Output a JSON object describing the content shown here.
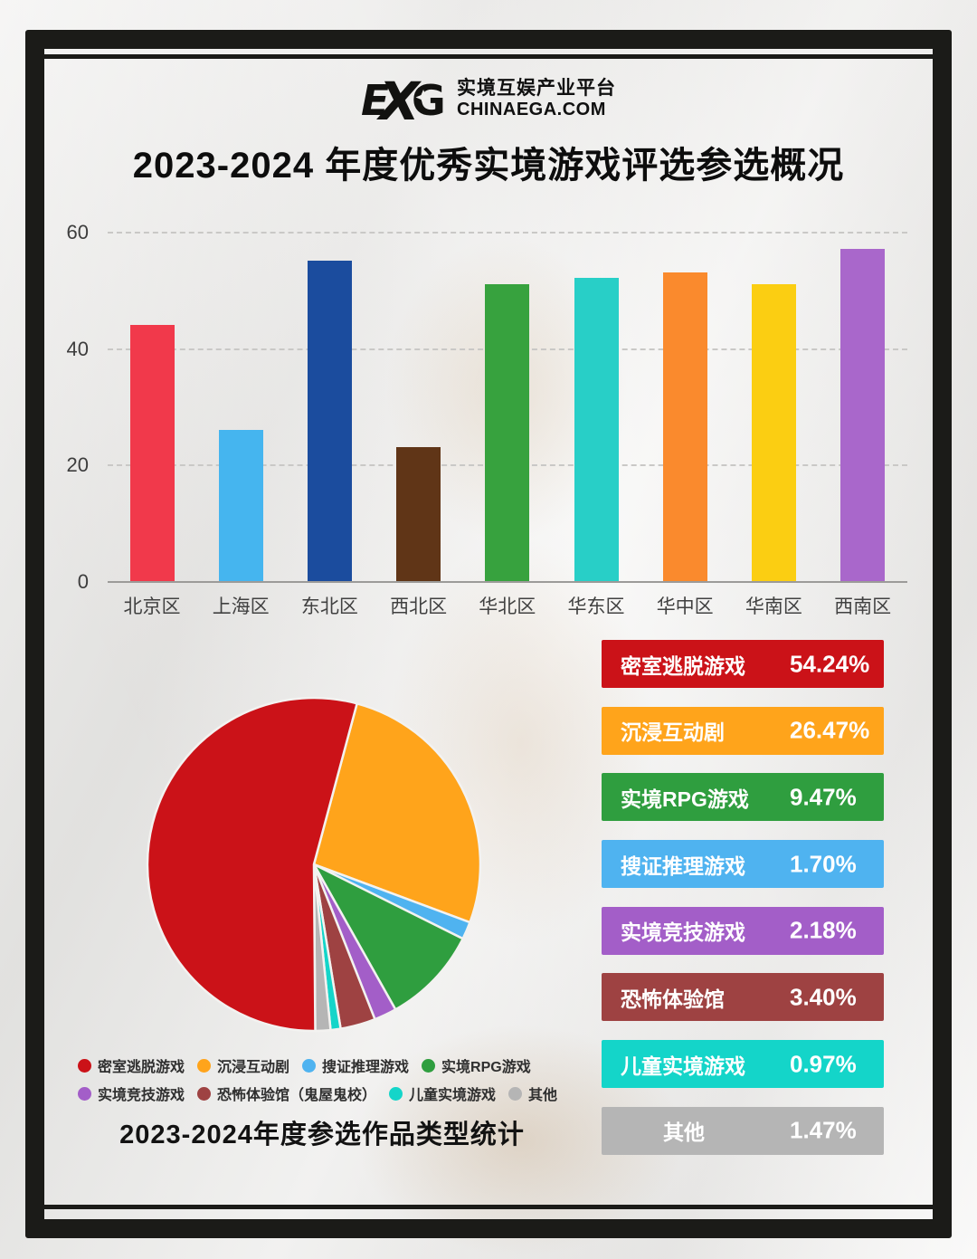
{
  "header": {
    "logo": {
      "mark": "EGA",
      "line1": "实境互娱产业平台",
      "line2": "CHINAEGA.COM"
    },
    "title": "2023-2024 年度优秀实境游戏评选参选概况"
  },
  "chart_data": [
    {
      "type": "bar",
      "title": "",
      "xlabel": "",
      "ylabel": "",
      "categories": [
        "北京区",
        "上海区",
        "东北区",
        "西北区",
        "华北区",
        "华东区",
        "华中区",
        "华南区",
        "西南区"
      ],
      "values": [
        44,
        26,
        55,
        23,
        51,
        52,
        53,
        51,
        57
      ],
      "colors": [
        "#f1394b",
        "#45b5ef",
        "#1b4c9e",
        "#603517",
        "#37a23e",
        "#28cfc7",
        "#fa8a2d",
        "#fbce12",
        "#a967cb"
      ],
      "ylim": [
        0,
        60
      ],
      "yticks": [
        0,
        20,
        40,
        60
      ],
      "grid": "horizontal-dashed",
      "legend_position": "none"
    },
    {
      "type": "pie",
      "title": "2023-2024年度参选作品类型统计",
      "labels": [
        "密室逃脱游戏",
        "沉浸互动剧",
        "搜证推理游戏",
        "实境RPG游戏",
        "实境竞技游戏",
        "恐怖体验馆（鬼屋鬼校）",
        "儿童实境游戏",
        "其他"
      ],
      "values": [
        54.24,
        26.47,
        1.7,
        9.47,
        2.18,
        3.4,
        0.97,
        1.47
      ],
      "colors": [
        "#cb1218",
        "#ffa41b",
        "#4fb3f0",
        "#2f9e3f",
        "#a35ec8",
        "#9e4242",
        "#14d5c9",
        "#b5b5b5"
      ],
      "start_angle_deg": 15,
      "draw_order_clockwise": [
        "沉浸互动剧",
        "搜证推理游戏",
        "实境RPG游戏",
        "实境竞技游戏",
        "恐怖体验馆（鬼屋鬼校）",
        "儿童实境游戏",
        "其他",
        "密室逃脱游戏"
      ],
      "legend_position": "below"
    }
  ],
  "legend": {
    "rows": [
      [
        {
          "label": "密室逃脱游戏",
          "color": "#cb1218"
        },
        {
          "label": "沉浸互动剧",
          "color": "#ffa41b"
        },
        {
          "label": "搜证推理游戏",
          "color": "#4fb3f0"
        },
        {
          "label": "实境RPG游戏",
          "color": "#2f9e3f"
        }
      ],
      [
        {
          "label": "实境竞技游戏",
          "color": "#a35ec8"
        },
        {
          "label": "恐怖体验馆（鬼屋鬼校）",
          "color": "#9e4242"
        },
        {
          "label": "儿童实境游戏",
          "color": "#14d5c9"
        },
        {
          "label": "其他",
          "color": "#b5b5b5"
        }
      ]
    ]
  },
  "pie_caption": "2023-2024年度参选作品类型统计",
  "breakdown": {
    "rows": [
      {
        "label": "密室逃脱游戏",
        "value": "54.24%",
        "color": "#cb1218"
      },
      {
        "label": "沉浸互动剧",
        "value": "26.47%",
        "color": "#ffa41b"
      },
      {
        "label": "实境RPG游戏",
        "value": "9.47%",
        "color": "#2f9e3f"
      },
      {
        "label": "搜证推理游戏",
        "value": "1.70%",
        "color": "#4fb3f0"
      },
      {
        "label": "实境竞技游戏",
        "value": "2.18%",
        "color": "#a35ec8"
      },
      {
        "label": "恐怖体验馆",
        "value": "3.40%",
        "color": "#9e4242"
      },
      {
        "label": "儿童实境游戏",
        "value": "0.97%",
        "color": "#14d5c9"
      },
      {
        "label": "其他",
        "value": "1.47%",
        "color": "#b5b5b5"
      }
    ]
  }
}
